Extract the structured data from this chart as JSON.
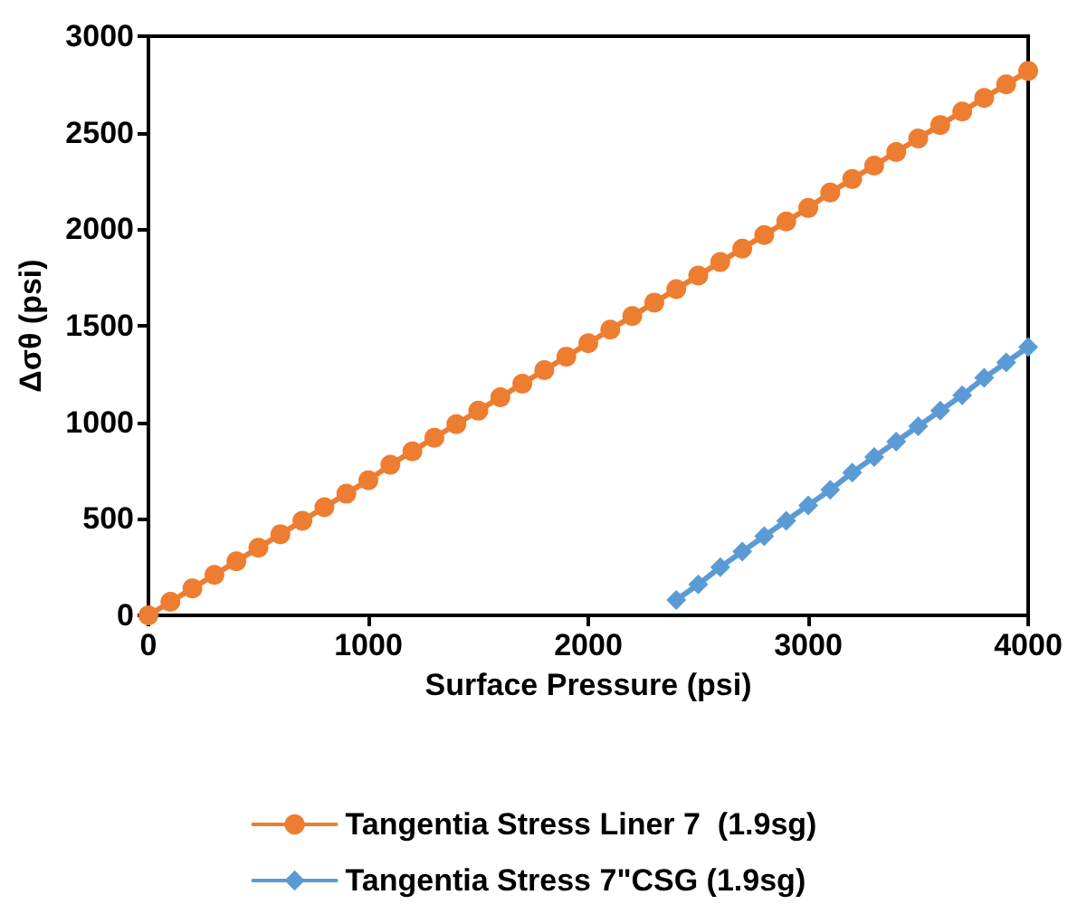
{
  "chart_data": {
    "type": "line",
    "xlabel": "Surface Pressure (psi)",
    "ylabel": "Δσθ (psi)",
    "xlim": [
      0,
      4000
    ],
    "xticks": [
      0,
      1000,
      2000,
      3000,
      4000
    ],
    "ylim": [
      0,
      3000
    ],
    "yticks": [
      0,
      500,
      1000,
      1500,
      2000,
      2500,
      3000
    ],
    "grid": false,
    "legend": "bottom",
    "series": [
      {
        "name": "Tangentia Stress Liner 7  (1.9sg)",
        "color": "#ed7d31",
        "marker": "circle",
        "x": [
          0,
          100,
          200,
          300,
          400,
          500,
          600,
          700,
          800,
          900,
          1000,
          1100,
          1200,
          1300,
          1400,
          1500,
          1600,
          1700,
          1800,
          1900,
          2000,
          2100,
          2200,
          2300,
          2400,
          2500,
          2600,
          2700,
          2800,
          2900,
          3000,
          3100,
          3200,
          3300,
          3400,
          3500,
          3600,
          3700,
          3800,
          3900,
          4000
        ],
        "values": [
          0,
          70,
          140,
          210,
          280,
          350,
          420,
          490,
          560,
          630,
          700,
          780,
          850,
          920,
          990,
          1060,
          1130,
          1200,
          1270,
          1340,
          1410,
          1480,
          1550,
          1620,
          1690,
          1760,
          1830,
          1900,
          1970,
          2040,
          2110,
          2190,
          2260,
          2330,
          2400,
          2470,
          2540,
          2610,
          2680,
          2750,
          2820
        ]
      },
      {
        "name": "Tangentia Stress 7\"CSG (1.9sg)",
        "color": "#5b9bd5",
        "marker": "diamond",
        "x": [
          2400,
          2500,
          2600,
          2700,
          2800,
          2900,
          3000,
          3100,
          3200,
          3300,
          3400,
          3500,
          3600,
          3700,
          3800,
          3900,
          4000
        ],
        "values": [
          80,
          160,
          250,
          330,
          410,
          490,
          570,
          650,
          740,
          820,
          900,
          980,
          1060,
          1140,
          1230,
          1310,
          1390
        ]
      }
    ]
  }
}
